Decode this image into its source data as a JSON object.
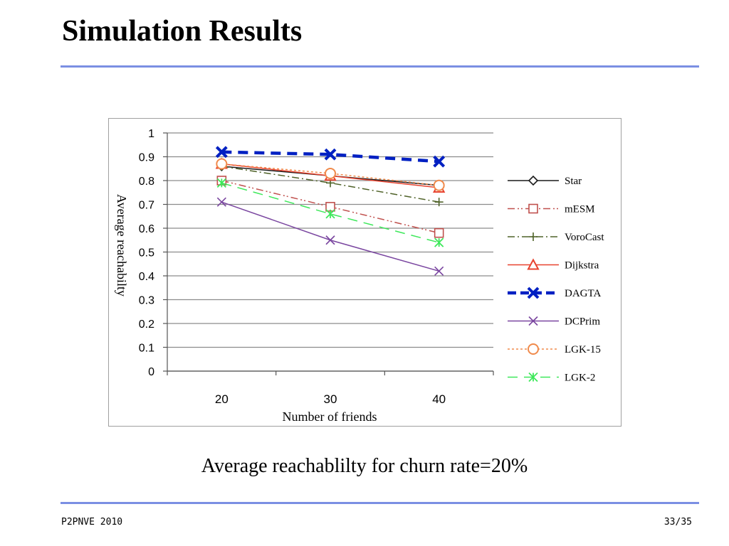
{
  "slide": {
    "title": "Simulation Results",
    "caption": "Average reachablilty for churn rate=20%",
    "footer_left": "P2PNVE 2010",
    "footer_right": "33/35"
  },
  "colors": {
    "rule": "#7b8fe3",
    "grid": "#8c8c8c"
  },
  "chart_data": {
    "type": "line",
    "title": "",
    "xlabel": "Number of friends",
    "ylabel": "Average reachabilty",
    "categories": [
      "20",
      "30",
      "40"
    ],
    "ylim": [
      0,
      1
    ],
    "yticks": [
      "0",
      "0.1",
      "0.2",
      "0.3",
      "0.4",
      "0.5",
      "0.6",
      "0.7",
      "0.8",
      "0.9",
      "1"
    ],
    "grid": true,
    "legend_position": "right",
    "series": [
      {
        "name": "Star",
        "values": [
          0.86,
          0.82,
          0.78
        ],
        "color": "#1a1a1a",
        "marker": "diamond",
        "dash": "solid",
        "width": 1.5
      },
      {
        "name": "mESM",
        "values": [
          0.8,
          0.69,
          0.58
        ],
        "color": "#c0504d",
        "marker": "square",
        "dash": "dashdotdot",
        "width": 1.5
      },
      {
        "name": "VoroCast",
        "values": [
          0.86,
          0.79,
          0.71
        ],
        "color": "#4f6228",
        "marker": "plus",
        "dash": "dashdot",
        "width": 1.5
      },
      {
        "name": "Dijkstra",
        "values": [
          0.87,
          0.82,
          0.77
        ],
        "color": "#e8432f",
        "marker": "triangle",
        "dash": "solid",
        "width": 1.5
      },
      {
        "name": "DAGTA",
        "values": [
          0.92,
          0.91,
          0.88
        ],
        "color": "#0020c2",
        "marker": "x",
        "dash": "dash",
        "width": 4.5
      },
      {
        "name": "DCPrim",
        "values": [
          0.71,
          0.55,
          0.42
        ],
        "color": "#7a46a0",
        "marker": "x",
        "dash": "solid",
        "width": 1.5
      },
      {
        "name": "LGK-15",
        "values": [
          0.87,
          0.83,
          0.78
        ],
        "color": "#f08a4b",
        "marker": "circle",
        "dash": "dot",
        "width": 1.5
      },
      {
        "name": "LGK-2",
        "values": [
          0.79,
          0.66,
          0.54
        ],
        "color": "#3de85a",
        "marker": "asterisk",
        "dash": "dash",
        "width": 1.5
      }
    ]
  }
}
